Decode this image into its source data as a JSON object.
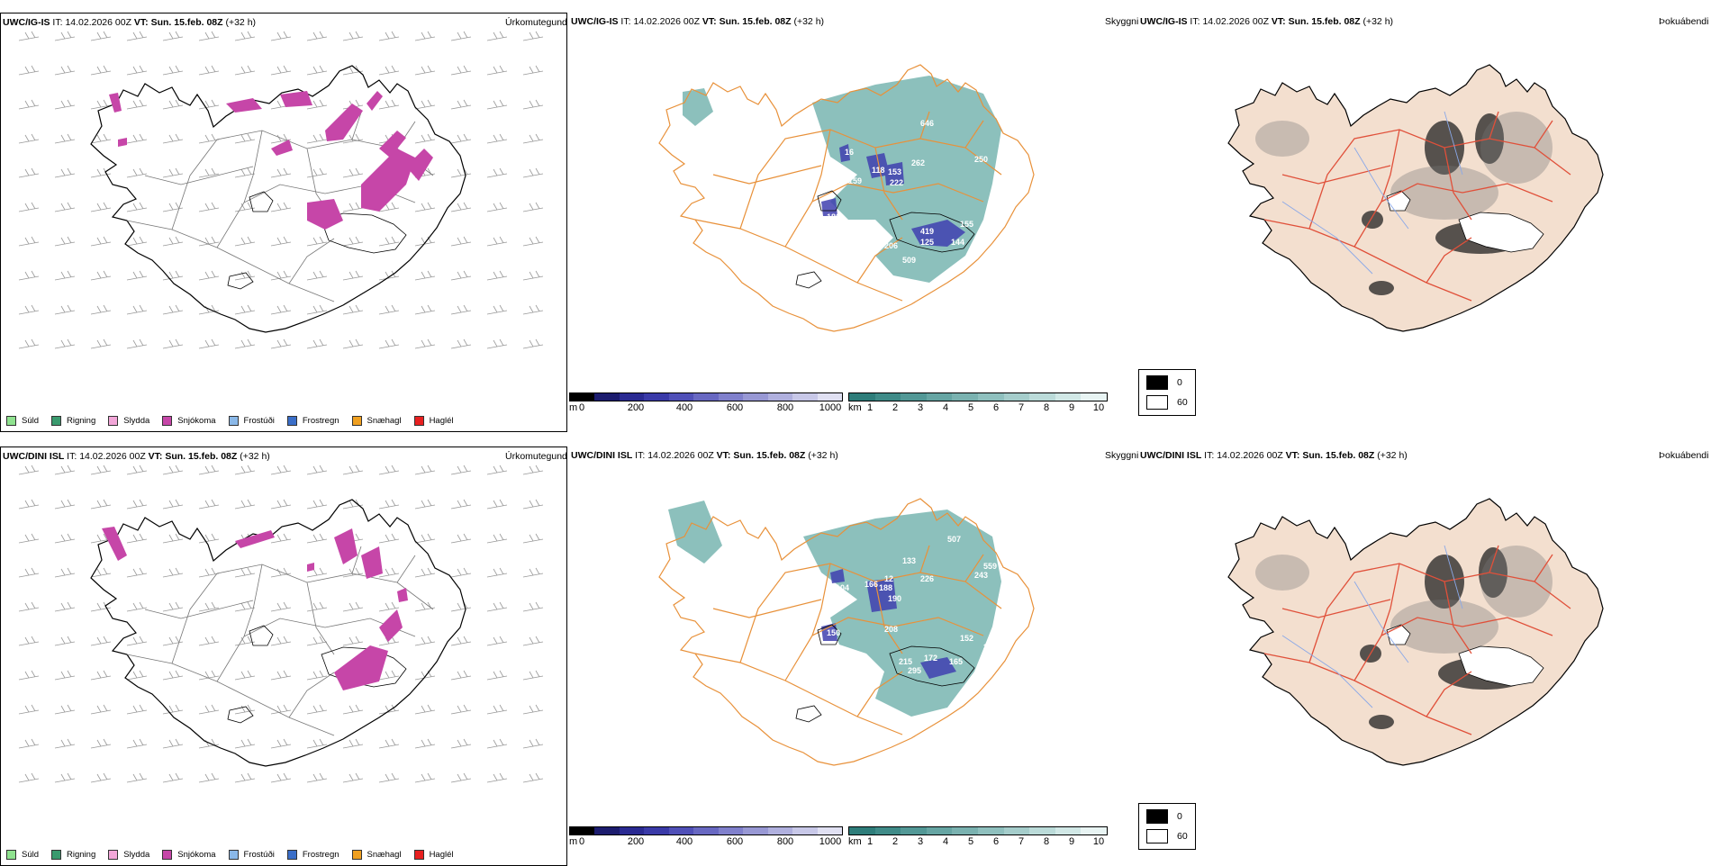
{
  "rows": [
    {
      "model": "UWC/IG-IS",
      "it_label": "IT:",
      "it_value": "14.02.2026 00Z",
      "vt_label": "VT:",
      "vt_value": "Sun. 15.feb. 08Z",
      "lead": "(+32 h)",
      "precip_labels": [],
      "vis_labels": [
        "16",
        "118",
        "153",
        "159",
        "222",
        "262",
        "646",
        "250",
        "449",
        "186",
        "419",
        "78",
        "206",
        "125",
        "155",
        "144",
        "509",
        "502"
      ]
    },
    {
      "model": "UWC/DINI ISL",
      "it_label": "IT:",
      "it_value": "14.02.2026 00Z",
      "vt_label": "VT:",
      "vt_value": "Sun. 15.feb. 08Z",
      "lead": "(+32 h)",
      "vis_labels": [
        "507",
        "559",
        "226",
        "243",
        "104",
        "166",
        "188",
        "190",
        "133",
        "150",
        "208",
        "152",
        "306",
        "215",
        "172",
        "295",
        "165",
        "12"
      ]
    }
  ],
  "panel_types": {
    "precip": "Úrkomutegund",
    "visibility": "Skyggni",
    "fog": "Þokuábendi"
  },
  "precip_legend": [
    {
      "label": "Súld",
      "color": "#8fe28f"
    },
    {
      "label": "Rigning",
      "color": "#3a9a6e"
    },
    {
      "label": "Slydda",
      "color": "#f2a6d8"
    },
    {
      "label": "Snjókoma",
      "color": "#c646a8"
    },
    {
      "label": "Frostúði",
      "color": "#8ab8e8"
    },
    {
      "label": "Frostregn",
      "color": "#3a6ec8"
    },
    {
      "label": "Snæhagl",
      "color": "#f0a020"
    },
    {
      "label": "Haglél",
      "color": "#e82020"
    }
  ],
  "height_bar": {
    "unit": "m",
    "ticks": [
      "0",
      "200",
      "400",
      "600",
      "800",
      "1000"
    ],
    "colors": [
      "#000000",
      "#1c1c6e",
      "#2a2a92",
      "#3a3aa8",
      "#5050b8",
      "#6868c2",
      "#8080cc",
      "#9898d4",
      "#b0b0de",
      "#c8c8e8",
      "#e0e0f2"
    ]
  },
  "km_bar": {
    "unit": "km",
    "ticks": [
      "1",
      "2",
      "3",
      "4",
      "5",
      "6",
      "7",
      "8",
      "9",
      "10"
    ],
    "colors": [
      "#2e7d7a",
      "#3f8b88",
      "#529896",
      "#66a5a3",
      "#7ab2b0",
      "#8fc0be",
      "#a5cdcb",
      "#bbdbd9",
      "#d1e8e6",
      "#e8f4f3"
    ]
  },
  "fog_legend": [
    {
      "label": "0",
      "color": "#000000"
    },
    {
      "label": "60",
      "color": "#ffffff"
    }
  ],
  "colors": {
    "land_fog": "#f3dfcf",
    "roads_orange": "#e8913a",
    "roads_red": "#e0503a",
    "rivers": "#8aa8e8",
    "snow": "#c646a8",
    "vis_teal": "#6fb0ab",
    "vis_blue": "#4040b0"
  }
}
